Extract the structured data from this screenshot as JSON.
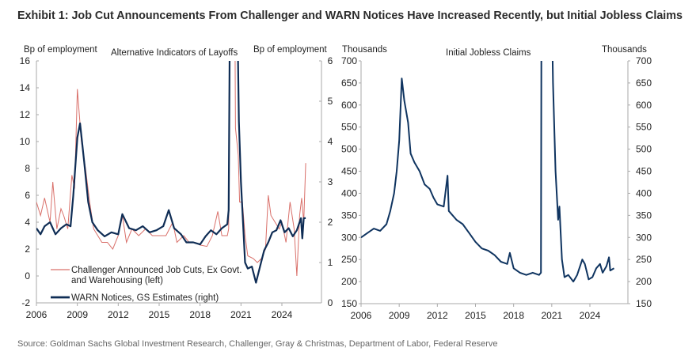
{
  "title": "Exhibit 1: Job Cut Announcements From Challenger and WARN Notices Have Increased Recently, but Initial Jobless Claims",
  "source": "Source: Goldman Sachs Global Investment Research, Challenger, Gray & Christmas, Department of Labor, Federal Reserve",
  "colors": {
    "challenger": "#d9706a",
    "warn": "#0f2d55",
    "claims": "#0f3460",
    "axis": "#aaaaaa",
    "title": "#2b2b2b",
    "source": "#666666"
  },
  "chart_data": [
    {
      "type": "line",
      "title": "Alternative  Indicators of Layoffs",
      "ylabel_left": "Bp of employment",
      "ylabel_right": "Bp of employment",
      "ylim_left": [
        -2,
        16
      ],
      "ylim_right": [
        0,
        6
      ],
      "yticks_left": [
        "-2",
        "0",
        "2",
        "4",
        "6",
        "8",
        "10",
        "12",
        "14",
        "16"
      ],
      "yticks_right": [
        "0",
        "1",
        "2",
        "3",
        "4",
        "5",
        "6"
      ],
      "xticks": [
        "2006",
        "2009",
        "2012",
        "2015",
        "2018",
        "2021",
        "2024"
      ],
      "xlim": [
        2006,
        2027.5
      ],
      "legend_placement": "bottom-left",
      "series": [
        {
          "name": "Challenger Announced Job Cuts, Ex  Govt.",
          "name2": "and Warehousing (left)",
          "axis": "left",
          "x": [
            2006.0,
            2006.3,
            2006.6,
            2007.0,
            2007.2,
            2007.5,
            2007.8,
            2008.0,
            2008.3,
            2008.6,
            2008.8,
            2009.0,
            2009.3,
            2009.6,
            2009.9,
            2010.2,
            2010.5,
            2010.8,
            2011.2,
            2011.6,
            2012.0,
            2012.3,
            2012.6,
            2013.0,
            2013.5,
            2014.0,
            2014.5,
            2015.0,
            2015.5,
            2016.0,
            2016.3,
            2016.8,
            2017.2,
            2017.6,
            2018.0,
            2018.5,
            2018.9,
            2019.3,
            2019.6,
            2020.0,
            2020.1,
            2020.2,
            2020.5,
            2020.6,
            2020.8,
            2020.9,
            2021.1,
            2021.3,
            2021.5,
            2021.9,
            2022.2,
            2022.5,
            2022.8,
            2023.0,
            2023.2,
            2023.5,
            2023.8,
            2024.0,
            2024.3,
            2024.6,
            2024.9,
            2025.1,
            2025.3,
            2025.45,
            2025.6,
            2025.75
          ],
          "y": [
            5.5,
            4.5,
            5.8,
            4.0,
            7.0,
            3.5,
            5.0,
            4.5,
            3.5,
            7.5,
            6.5,
            13.9,
            10.0,
            8.0,
            5.5,
            3.5,
            3.0,
            2.5,
            2.5,
            2.0,
            3.0,
            4.5,
            2.5,
            3.5,
            3.0,
            3.5,
            3.0,
            3.0,
            3.0,
            4.0,
            2.5,
            3.0,
            2.5,
            2.5,
            2.3,
            2.2,
            3.0,
            4.8,
            3.0,
            3.0,
            3.5,
            30,
            30,
            11,
            9.0,
            5.5,
            5.5,
            3.0,
            1.5,
            1.3,
            1.0,
            1.3,
            2.0,
            6.0,
            4.5,
            4.0,
            3.5,
            4.0,
            2.5,
            5.5,
            3.5,
            0.0,
            4.5,
            5.8,
            4.0,
            8.4
          ]
        },
        {
          "name": "WARN Notices, GS Estimates (right)",
          "axis": "right",
          "x": [
            2006.0,
            2006.3,
            2006.6,
            2007.0,
            2007.4,
            2007.8,
            2008.2,
            2008.5,
            2008.7,
            2009.0,
            2009.2,
            2009.5,
            2009.8,
            2010.1,
            2010.5,
            2011.0,
            2011.5,
            2012.0,
            2012.3,
            2012.8,
            2013.3,
            2013.8,
            2014.3,
            2014.8,
            2015.3,
            2015.7,
            2016.1,
            2016.6,
            2017.0,
            2017.5,
            2018.0,
            2018.4,
            2018.8,
            2019.2,
            2019.6,
            2020.0,
            2020.1,
            2020.2,
            2020.7,
            2020.85,
            2021.0,
            2021.3,
            2021.5,
            2021.8,
            2022.1,
            2022.4,
            2022.7,
            2023.0,
            2023.3,
            2023.6,
            2023.9,
            2024.2,
            2024.5,
            2024.8,
            2025.1,
            2025.4,
            2025.5,
            2025.6,
            2025.75
          ],
          "y": [
            1.85,
            1.7,
            1.9,
            2.0,
            1.7,
            1.85,
            1.95,
            1.9,
            2.65,
            4.1,
            4.45,
            3.5,
            2.5,
            2.0,
            1.8,
            1.65,
            1.75,
            1.7,
            2.2,
            1.85,
            1.8,
            1.9,
            1.75,
            1.8,
            1.9,
            2.3,
            1.85,
            1.7,
            1.5,
            1.5,
            1.45,
            1.65,
            1.8,
            1.7,
            1.85,
            1.95,
            2.3,
            8,
            8,
            4.5,
            3.0,
            1.0,
            0.85,
            0.9,
            0.5,
            0.9,
            1.3,
            1.5,
            1.75,
            1.8,
            2.05,
            1.75,
            1.85,
            1.65,
            1.8,
            2.1,
            1.6,
            2.1,
            2.1
          ]
        }
      ]
    },
    {
      "type": "line",
      "title": "Initial Jobless Claims",
      "ylabel_left": "Thousands",
      "ylabel_right": "Thousands",
      "ylim": [
        150,
        700
      ],
      "yticks": [
        "150",
        "200",
        "250",
        "300",
        "350",
        "400",
        "450",
        "500",
        "550",
        "600",
        "650",
        "700"
      ],
      "xticks": [
        "2006",
        "2009",
        "2012",
        "2015",
        "2018",
        "2021",
        "2024"
      ],
      "xlim": [
        2006,
        2027.5
      ],
      "series": [
        {
          "axis": "left",
          "x": [
            2006.0,
            2006.5,
            2007.0,
            2007.5,
            2008.0,
            2008.3,
            2008.6,
            2008.8,
            2009.0,
            2009.2,
            2009.4,
            2009.7,
            2009.9,
            2010.2,
            2010.6,
            2011.0,
            2011.4,
            2011.7,
            2012.0,
            2012.5,
            2012.8,
            2012.9,
            2013.5,
            2014.0,
            2014.5,
            2015.0,
            2015.5,
            2016.0,
            2016.5,
            2017.0,
            2017.5,
            2017.7,
            2018.0,
            2018.5,
            2019.0,
            2019.5,
            2020.0,
            2020.15,
            2020.2,
            2020.9,
            2021.1,
            2021.3,
            2021.5,
            2021.6,
            2021.8,
            2022.0,
            2022.3,
            2022.7,
            2023.0,
            2023.4,
            2023.6,
            2023.9,
            2024.2,
            2024.5,
            2024.8,
            2025.0,
            2025.3,
            2025.5,
            2025.6,
            2025.9
          ],
          "y": [
            300,
            310,
            320,
            315,
            330,
            360,
            400,
            450,
            520,
            660,
            610,
            560,
            490,
            470,
            450,
            420,
            410,
            390,
            375,
            370,
            440,
            360,
            340,
            330,
            310,
            290,
            275,
            270,
            260,
            245,
            240,
            265,
            230,
            220,
            215,
            220,
            215,
            220,
            1000,
            1000,
            650,
            450,
            340,
            370,
            250,
            210,
            215,
            200,
            215,
            250,
            240,
            205,
            210,
            230,
            240,
            220,
            235,
            255,
            225,
            230
          ]
        }
      ]
    }
  ]
}
